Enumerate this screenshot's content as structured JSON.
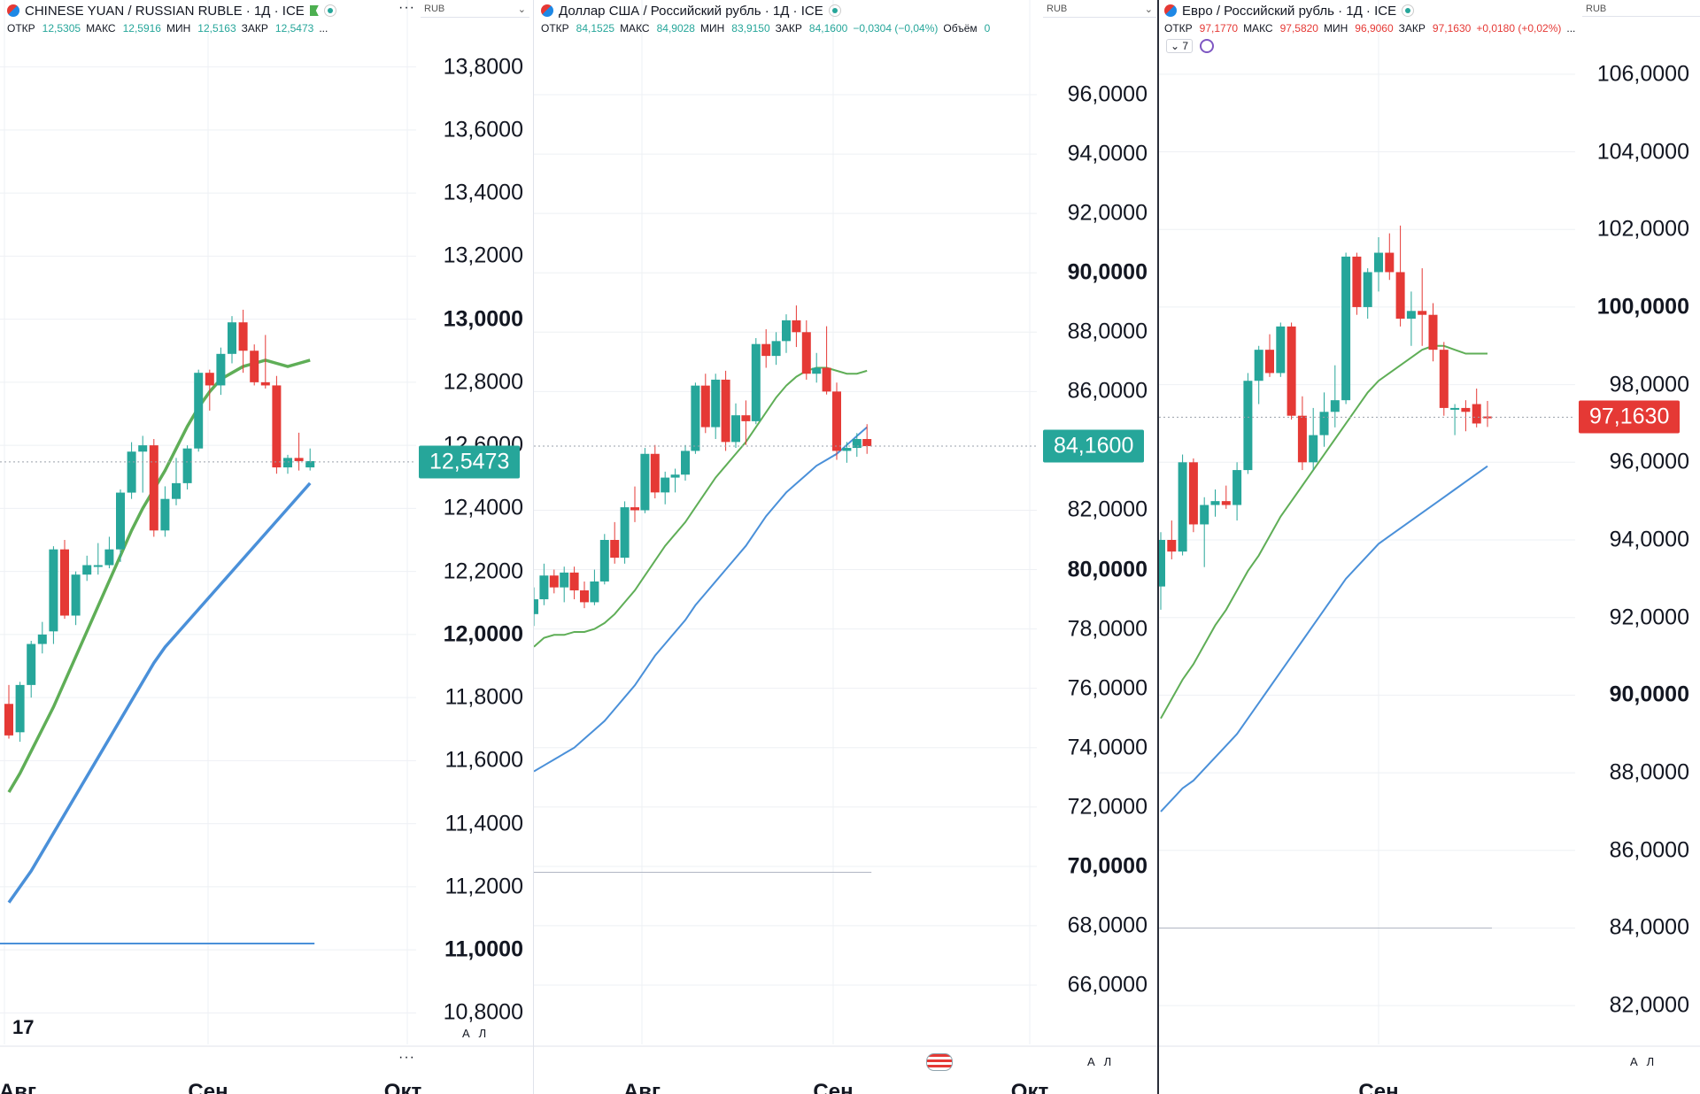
{
  "panes": [
    {
      "id": "cny",
      "title": "CHINESE YUAN / RUSSIAN RUBLE · 1Д · ICE",
      "ohlc": {
        "o_label": "ОТКР",
        "o": "12,5305",
        "h_label": "МАКС",
        "h": "12,5916",
        "l_label": "МИН",
        "l": "12,5163",
        "c_label": "ЗАКР",
        "c": "12,5473",
        "extra": "..."
      },
      "currency": "RUB",
      "more": "···",
      "price": "12,5473",
      "price_color": "#26a69a",
      "ticks": [
        "13,8000",
        "13,6000",
        "13,4000",
        "13,2000",
        "13,0000",
        "12,8000",
        "12,6000",
        "12,4000",
        "12,2000",
        "12,0000",
        "11,8000",
        "11,6000",
        "11,4000",
        "11,2000",
        "11,0000",
        "10,8000"
      ],
      "dates": [
        "Авг",
        "Сен",
        "Окт"
      ],
      "scale_buttons": [
        "A",
        "Л"
      ],
      "logo": "17"
    },
    {
      "id": "usd",
      "title": "Доллар США / Российский рубль · 1Д · ICE",
      "ohlc": {
        "o_label": "ОТКР",
        "o": "84,1525",
        "h_label": "МАКС",
        "h": "84,9028",
        "l_label": "МИН",
        "l": "83,9150",
        "c_label": "ЗАКР",
        "c": "84,1600",
        "change": "−0,0304 (−0,04%)",
        "vol_label": "Объём",
        "vol": "0"
      },
      "currency": "RUB",
      "price": "84,1600",
      "price_color": "#26a69a",
      "ticks": [
        "96,0000",
        "94,0000",
        "92,0000",
        "90,0000",
        "88,0000",
        "86,0000",
        "82,0000",
        "80,0000",
        "78,0000",
        "76,0000",
        "74,0000",
        "72,0000",
        "70,0000",
        "68,0000",
        "66,0000"
      ],
      "dates": [
        "Авг",
        "Сен",
        "Окт"
      ],
      "scale_buttons": [
        "A",
        "Л"
      ]
    },
    {
      "id": "eur",
      "title": "Евро / Российский рубль · 1Д · ICE",
      "ohlc": {
        "o_label": "ОТКР",
        "o": "97,1770",
        "h_label": "МАКС",
        "h": "97,5820",
        "l_label": "МИН",
        "l": "96,9060",
        "c_label": "ЗАКР",
        "c": "97,1630",
        "change": "+0,0180 (+0,02%)",
        "extra": "..."
      },
      "indicators_count": "7",
      "currency": "RUB",
      "price": "97,1630",
      "price_color": "#e53935",
      "ticks": [
        "106,0000",
        "104,0000",
        "102,0000",
        "100,0000",
        "98,0000",
        "96,0000",
        "94,0000",
        "92,0000",
        "90,0000",
        "88,0000",
        "86,0000",
        "84,0000",
        "82,0000"
      ],
      "dates": [
        "Сен"
      ],
      "scale_buttons": [
        "A",
        "Л"
      ]
    }
  ],
  "colors": {
    "up": "#26a69a",
    "down": "#e53935",
    "ma_short": "#5fae57",
    "ma_long": "#4a90d9",
    "grid": "#eef0f4"
  },
  "chart_data": [
    {
      "type": "candlestick",
      "title": "CHINESE YUAN / RUSSIAN RUBLE · 1Д · ICE",
      "ylim": [
        10.7,
        13.9
      ],
      "x_ticks": [
        "Авг",
        "Сен",
        "Окт"
      ],
      "candles": [
        [
          11.78,
          11.84,
          11.67,
          11.68
        ],
        [
          11.69,
          11.85,
          11.66,
          11.84
        ],
        [
          11.84,
          11.98,
          11.8,
          11.97
        ],
        [
          11.97,
          12.04,
          11.94,
          12.0
        ],
        [
          12.01,
          12.28,
          11.97,
          12.27
        ],
        [
          12.27,
          12.3,
          12.05,
          12.06
        ],
        [
          12.06,
          12.2,
          12.03,
          12.19
        ],
        [
          12.19,
          12.25,
          12.17,
          12.22
        ],
        [
          12.22,
          12.29,
          12.19,
          12.22
        ],
        [
          12.22,
          12.31,
          12.21,
          12.27
        ],
        [
          12.27,
          12.46,
          12.23,
          12.45
        ],
        [
          12.45,
          12.61,
          12.43,
          12.58
        ],
        [
          12.58,
          12.63,
          12.45,
          12.6
        ],
        [
          12.6,
          12.62,
          12.31,
          12.33
        ],
        [
          12.33,
          12.47,
          12.31,
          12.43
        ],
        [
          12.43,
          12.56,
          12.41,
          12.48
        ],
        [
          12.48,
          12.6,
          12.46,
          12.59
        ],
        [
          12.59,
          12.84,
          12.58,
          12.83
        ],
        [
          12.83,
          12.84,
          12.71,
          12.79
        ],
        [
          12.79,
          12.91,
          12.76,
          12.89
        ],
        [
          12.89,
          13.01,
          12.86,
          12.99
        ],
        [
          12.99,
          13.03,
          12.83,
          12.9
        ],
        [
          12.9,
          12.92,
          12.79,
          12.8
        ],
        [
          12.8,
          12.95,
          12.78,
          12.79
        ],
        [
          12.79,
          12.82,
          12.51,
          12.53
        ],
        [
          12.53,
          12.57,
          12.51,
          12.56
        ],
        [
          12.56,
          12.64,
          12.52,
          12.55
        ],
        [
          12.53,
          12.59,
          12.52,
          12.55
        ]
      ],
      "ma_short": [
        11.5,
        11.56,
        11.63,
        11.7,
        11.77,
        11.85,
        11.93,
        12.01,
        12.09,
        12.17,
        12.25,
        12.33,
        12.4,
        12.46,
        12.52,
        12.59,
        12.66,
        12.72,
        12.77,
        12.81,
        12.83,
        12.85,
        12.86,
        12.87,
        12.86,
        12.85,
        12.86,
        12.87
      ],
      "ma_long": [
        11.15,
        11.2,
        11.25,
        11.31,
        11.37,
        11.43,
        11.49,
        11.55,
        11.61,
        11.67,
        11.73,
        11.79,
        11.85,
        11.91,
        11.96,
        12.0,
        12.04,
        12.08,
        12.12,
        12.16,
        12.2,
        12.24,
        12.28,
        12.32,
        12.36,
        12.4,
        12.44,
        12.48
      ]
    },
    {
      "type": "candlestick",
      "title": "Доллар США / Российский рубль · 1Д · ICE",
      "ylim": [
        64.0,
        98.0
      ],
      "x_ticks": [
        "Авг",
        "Сен",
        "Окт"
      ],
      "candles": [
        [
          78.5,
          79.4,
          78.1,
          79.0
        ],
        [
          79.0,
          80.2,
          78.8,
          79.8
        ],
        [
          79.8,
          80.0,
          79.2,
          79.4
        ],
        [
          79.4,
          80.1,
          78.9,
          79.9
        ],
        [
          79.9,
          80.1,
          79.0,
          79.3
        ],
        [
          79.3,
          79.6,
          78.7,
          78.9
        ],
        [
          78.9,
          80.0,
          78.8,
          79.6
        ],
        [
          79.6,
          81.2,
          79.5,
          81.0
        ],
        [
          81.0,
          81.6,
          80.2,
          80.4
        ],
        [
          80.4,
          82.3,
          80.2,
          82.1
        ],
        [
          82.1,
          82.8,
          81.6,
          82.0
        ],
        [
          82.0,
          84.1,
          81.9,
          83.9
        ],
        [
          83.9,
          84.2,
          82.4,
          82.6
        ],
        [
          82.6,
          83.3,
          82.2,
          83.1
        ],
        [
          83.1,
          83.4,
          82.6,
          83.2
        ],
        [
          83.2,
          84.2,
          83.0,
          84.0
        ],
        [
          84.0,
          86.3,
          83.9,
          86.2
        ],
        [
          86.2,
          86.6,
          84.6,
          84.8
        ],
        [
          84.8,
          86.6,
          84.4,
          86.4
        ],
        [
          86.4,
          86.7,
          84.0,
          84.3
        ],
        [
          84.3,
          85.6,
          84.1,
          85.2
        ],
        [
          85.2,
          85.7,
          84.2,
          85.0
        ],
        [
          85.0,
          87.8,
          84.9,
          87.6
        ],
        [
          87.6,
          88.1,
          86.8,
          87.2
        ],
        [
          87.2,
          88.0,
          86.9,
          87.7
        ],
        [
          87.7,
          88.6,
          87.3,
          88.4
        ],
        [
          88.4,
          88.9,
          87.5,
          88.0
        ],
        [
          88.0,
          88.4,
          86.4,
          86.6
        ],
        [
          86.6,
          87.3,
          86.3,
          86.8
        ],
        [
          86.8,
          88.2,
          85.9,
          86.0
        ],
        [
          86.0,
          86.3,
          83.7,
          84.0
        ],
        [
          84.0,
          84.3,
          83.6,
          84.1
        ],
        [
          84.1,
          84.6,
          83.8,
          84.4
        ],
        [
          84.4,
          84.9,
          83.9,
          84.16
        ]
      ],
      "ma_short": [
        77.4,
        77.7,
        77.8,
        77.8,
        77.9,
        77.9,
        78.0,
        78.2,
        78.5,
        78.9,
        79.3,
        79.8,
        80.3,
        80.8,
        81.2,
        81.6,
        82.1,
        82.6,
        83.1,
        83.5,
        83.9,
        84.3,
        84.8,
        85.3,
        85.8,
        86.2,
        86.5,
        86.7,
        86.8,
        86.8,
        86.7,
        86.6,
        86.6,
        86.7
      ],
      "ma_long": [
        73.2,
        73.4,
        73.6,
        73.8,
        74.0,
        74.3,
        74.6,
        74.9,
        75.3,
        75.7,
        76.1,
        76.6,
        77.1,
        77.5,
        77.9,
        78.3,
        78.8,
        79.2,
        79.6,
        80.0,
        80.4,
        80.8,
        81.3,
        81.8,
        82.2,
        82.6,
        82.9,
        83.2,
        83.5,
        83.7,
        83.9,
        84.2,
        84.5,
        84.8
      ]
    },
    {
      "type": "candlestick",
      "title": "Евро / Российский рубль · 1Д · ICE",
      "ylim": [
        81.0,
        107.0
      ],
      "x_ticks": [
        "Сен"
      ],
      "candles": [
        [
          92.8,
          94.2,
          92.2,
          94.0
        ],
        [
          94.0,
          94.5,
          93.5,
          93.7
        ],
        [
          93.7,
          96.2,
          93.6,
          96.0
        ],
        [
          96.0,
          96.1,
          94.2,
          94.4
        ],
        [
          94.4,
          95.1,
          93.3,
          94.9
        ],
        [
          94.9,
          95.3,
          94.6,
          95.0
        ],
        [
          95.0,
          95.4,
          94.8,
          94.9
        ],
        [
          94.9,
          96.0,
          94.5,
          95.8
        ],
        [
          95.8,
          98.3,
          95.7,
          98.1
        ],
        [
          98.1,
          99.0,
          97.5,
          98.9
        ],
        [
          98.9,
          99.3,
          98.2,
          98.3
        ],
        [
          98.3,
          99.6,
          98.2,
          99.5
        ],
        [
          99.5,
          99.6,
          97.1,
          97.2
        ],
        [
          97.2,
          97.7,
          95.8,
          96.0
        ],
        [
          96.0,
          97.4,
          95.8,
          96.7
        ],
        [
          96.7,
          97.8,
          96.4,
          97.3
        ],
        [
          97.3,
          98.5,
          96.9,
          97.6
        ],
        [
          97.6,
          101.4,
          97.5,
          101.3
        ],
        [
          101.3,
          101.4,
          99.8,
          100.0
        ],
        [
          100.0,
          101.0,
          99.7,
          100.9
        ],
        [
          100.9,
          101.8,
          100.4,
          101.4
        ],
        [
          101.4,
          101.9,
          100.7,
          100.9
        ],
        [
          100.9,
          102.1,
          99.5,
          99.7
        ],
        [
          99.7,
          100.4,
          99.0,
          99.9
        ],
        [
          99.9,
          101.0,
          99.0,
          99.8
        ],
        [
          99.8,
          100.1,
          98.6,
          98.9
        ],
        [
          98.9,
          99.1,
          97.2,
          97.4
        ],
        [
          97.4,
          97.5,
          96.7,
          97.4
        ],
        [
          97.4,
          97.6,
          96.8,
          97.3
        ],
        [
          97.5,
          97.9,
          96.9,
          97.0
        ],
        [
          97.18,
          97.58,
          96.91,
          97.16
        ]
      ],
      "ma_short": [
        89.4,
        89.9,
        90.4,
        90.8,
        91.3,
        91.8,
        92.2,
        92.7,
        93.2,
        93.6,
        94.1,
        94.6,
        95.0,
        95.4,
        95.8,
        96.2,
        96.6,
        97.0,
        97.4,
        97.8,
        98.1,
        98.3,
        98.5,
        98.7,
        98.9,
        99.0,
        99.0,
        98.9,
        98.8,
        98.8,
        98.8
      ],
      "ma_long": [
        87.0,
        87.3,
        87.6,
        87.8,
        88.1,
        88.4,
        88.7,
        89.0,
        89.4,
        89.8,
        90.2,
        90.6,
        91.0,
        91.4,
        91.8,
        92.2,
        92.6,
        93.0,
        93.3,
        93.6,
        93.9,
        94.1,
        94.3,
        94.5,
        94.7,
        94.9,
        95.1,
        95.3,
        95.5,
        95.7,
        95.9
      ]
    }
  ]
}
